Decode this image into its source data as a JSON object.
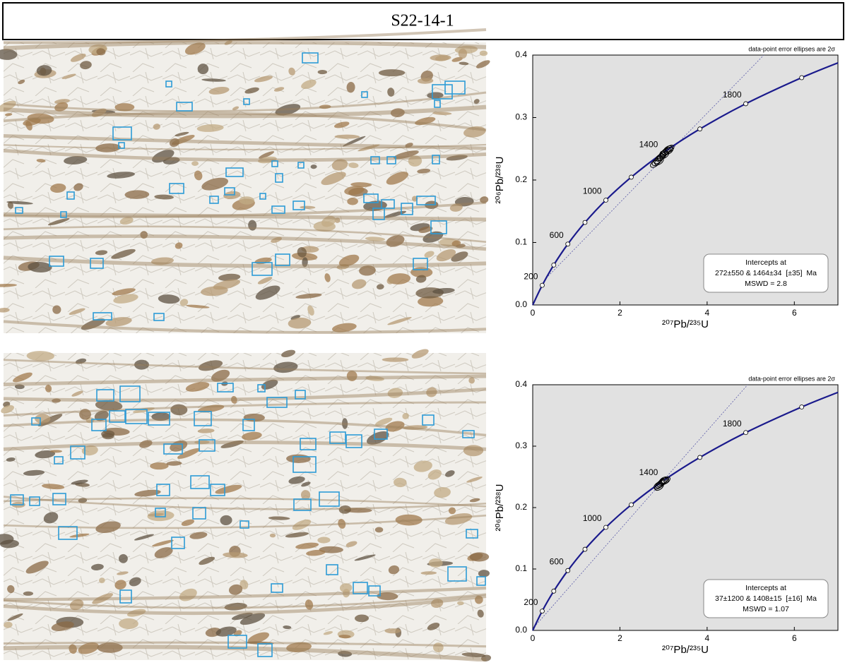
{
  "title": "S22-14-1",
  "chart_data": [
    {
      "type": "concordia",
      "note": "data-point error ellipses are 2σ",
      "x_label": "²⁰⁷Pb/²³⁵U",
      "y_label": "²⁰⁶Pb/²³⁸U",
      "xlim": [
        0,
        7
      ],
      "xticks": [
        0,
        2,
        4,
        6
      ],
      "ylim": [
        0,
        0.4
      ],
      "yticks": [
        {
          "value": 0,
          "label": "0.0"
        },
        0.1,
        0.2,
        0.3,
        0.4
      ],
      "curve": {
        "x": [
          0,
          0.2177,
          0.4828,
          0.8056,
          1.1987,
          1.6774,
          2.2603,
          2.9702,
          3.8342,
          4.8863,
          6.1683,
          7
        ],
        "y": [
          0,
          0.0315,
          0.064,
          0.0975,
          0.1321,
          0.1678,
          0.2046,
          0.2426,
          0.2817,
          0.3221,
          0.3638,
          0.3876
        ],
        "color": "#1a1a8c"
      },
      "age_markers": {
        "x": [
          0.2177,
          0.4828,
          0.8056,
          1.1987,
          1.6774,
          2.2603,
          2.9702,
          3.8342,
          4.8863,
          6.1683
        ],
        "y": [
          0.0315,
          0.064,
          0.0975,
          0.1321,
          0.1678,
          0.2046,
          0.2426,
          0.2817,
          0.3221,
          0.3638
        ],
        "labels": [
          200,
          null,
          600,
          null,
          1000,
          null,
          1400,
          null,
          1800,
          null
        ]
      },
      "discordia": {
        "x": [
          0.31,
          5.3
        ],
        "y": [
          0.043,
          0.4
        ]
      },
      "points": {
        "x": [
          2.8,
          2.84,
          2.88,
          2.92,
          2.96,
          3.0,
          3.03,
          3.06,
          3.1,
          3.14,
          2.9,
          3.02,
          3.12
        ],
        "y": [
          0.226,
          0.229,
          0.232,
          0.236,
          0.238,
          0.242,
          0.244,
          0.246,
          0.249,
          0.25,
          0.23,
          0.24,
          0.247
        ]
      },
      "intercepts": [
        "Intercepts at",
        "272±550 & 1464±34  [±35]  Ma",
        "MSWD = 2.8"
      ]
    },
    {
      "type": "concordia",
      "note": "data-point error ellipses are 2σ",
      "x_label": "²⁰⁷Pb/²³⁵U",
      "y_label": "²⁰⁶Pb/²³⁸U",
      "xlim": [
        0,
        7
      ],
      "xticks": [
        0,
        2,
        4,
        6
      ],
      "ylim": [
        0,
        0.4
      ],
      "yticks": [
        {
          "value": 0,
          "label": "0.0"
        },
        0.1,
        0.2,
        0.3,
        0.4
      ],
      "curve": {
        "x": [
          0,
          0.2177,
          0.4828,
          0.8056,
          1.1987,
          1.6774,
          2.2603,
          2.9702,
          3.8342,
          4.8863,
          6.1683,
          7
        ],
        "y": [
          0,
          0.0315,
          0.064,
          0.0975,
          0.1321,
          0.1678,
          0.2046,
          0.2426,
          0.2817,
          0.3221,
          0.3638,
          0.3876
        ],
        "color": "#1a1a8c"
      },
      "age_markers": {
        "x": [
          0.2177,
          0.4828,
          0.8056,
          1.1987,
          1.6774,
          2.2603,
          2.9702,
          3.8342,
          4.8863,
          6.1683
        ],
        "y": [
          0.0315,
          0.064,
          0.0975,
          0.1321,
          0.1678,
          0.2046,
          0.2426,
          0.2817,
          0.3221,
          0.3638
        ],
        "labels": [
          200,
          null,
          600,
          null,
          1000,
          null,
          1400,
          null,
          1800,
          null
        ]
      },
      "discordia": {
        "x": [
          0.037,
          4.93
        ],
        "y": [
          0.0058,
          0.4
        ]
      },
      "points": {
        "x": [
          2.88,
          2.92,
          2.95,
          2.98,
          3.02,
          3.05,
          2.9,
          3.0
        ],
        "y": [
          0.236,
          0.238,
          0.24,
          0.242,
          0.243,
          0.244,
          0.234,
          0.244
        ]
      },
      "intercepts": [
        "Intercepts at",
        "37±1200 & 1408±15  [±16]  Ma",
        "MSWD = 1.07"
      ]
    }
  ]
}
